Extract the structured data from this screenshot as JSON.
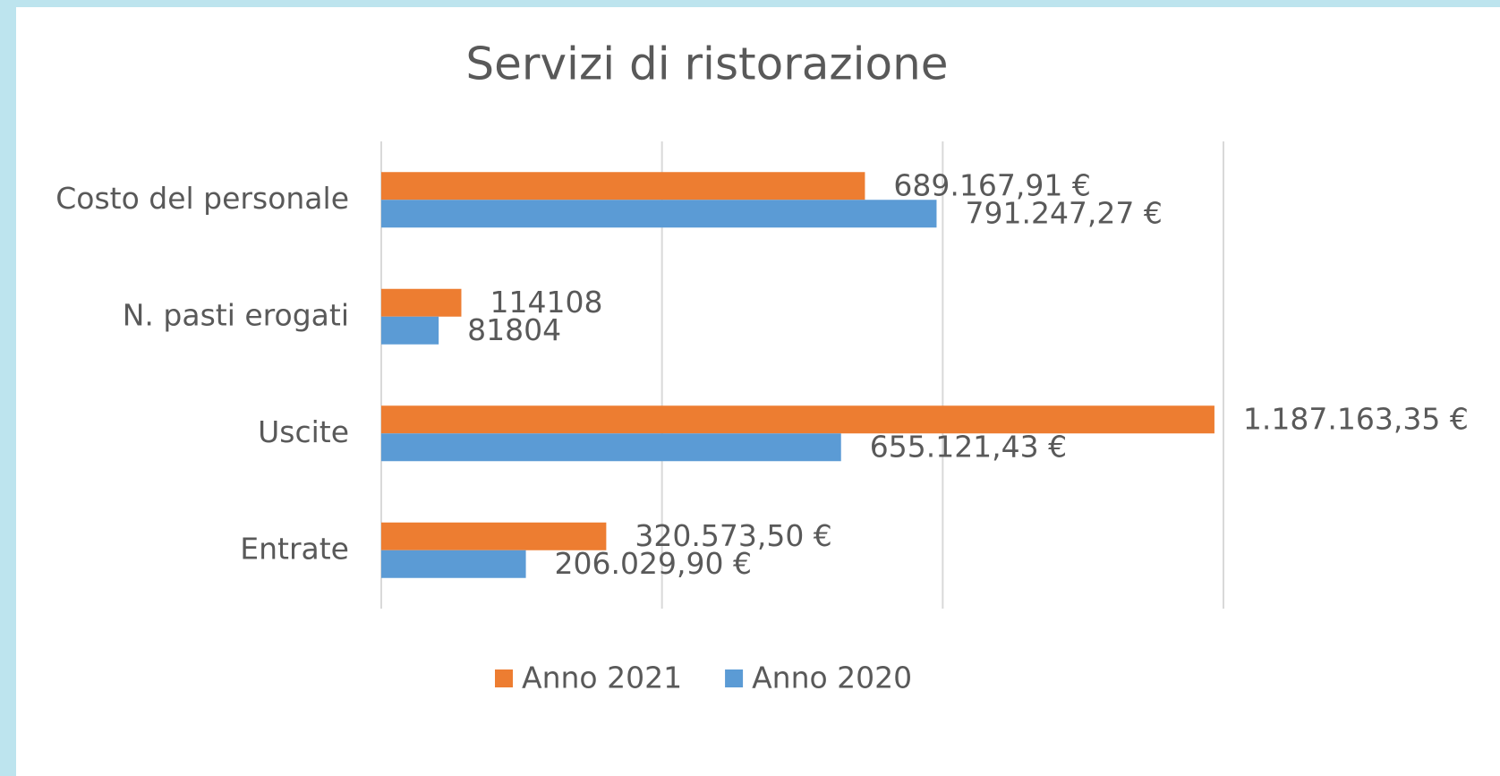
{
  "chart_data": {
    "type": "hbar",
    "title": "Servizi di ristorazione",
    "categories": [
      "Costo del personale",
      "N. pasti erogati",
      "Uscite",
      "Entrate"
    ],
    "series": [
      {
        "name": "Anno 2021",
        "color": "#ed7d31",
        "values": [
          689167.91,
          114108,
          1187163.35,
          320573.5
        ],
        "value_labels": [
          "689.167,91 €",
          "114108",
          "1.187.163,35 €",
          "320.573,50 €"
        ]
      },
      {
        "name": "Anno 2020",
        "color": "#5b9bd5",
        "values": [
          791247.27,
          81804,
          655121.43,
          206029.9
        ],
        "value_labels": [
          "791.247,27 €",
          "81804",
          "655.121,43 €",
          "206.029,90 €"
        ]
      }
    ],
    "xlim": [
      0,
      1200000
    ],
    "xticks": [
      0,
      400000,
      800000,
      1200000
    ],
    "grid": true,
    "legend": "bottom"
  }
}
